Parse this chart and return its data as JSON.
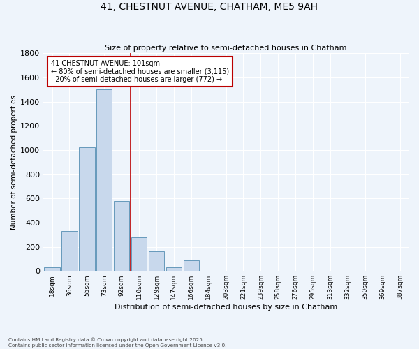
{
  "title_line1": "41, CHESTNUT AVENUE, CHATHAM, ME5 9AH",
  "title_line2": "Size of property relative to semi-detached houses in Chatham",
  "xlabel": "Distribution of semi-detached houses by size in Chatham",
  "ylabel": "Number of semi-detached properties",
  "categories": [
    "18sqm",
    "36sqm",
    "55sqm",
    "73sqm",
    "92sqm",
    "110sqm",
    "129sqm",
    "147sqm",
    "166sqm",
    "184sqm",
    "203sqm",
    "221sqm",
    "239sqm",
    "258sqm",
    "276sqm",
    "295sqm",
    "313sqm",
    "332sqm",
    "350sqm",
    "369sqm",
    "387sqm"
  ],
  "values": [
    30,
    330,
    1020,
    1500,
    580,
    280,
    160,
    30,
    90,
    0,
    0,
    0,
    0,
    0,
    0,
    0,
    0,
    0,
    0,
    0,
    0
  ],
  "bar_color": "#c8d8ec",
  "bar_edge_color": "#6699bb",
  "vline_color": "#bb0000",
  "vline_x": 4.5,
  "pct_smaller": 80,
  "count_smaller": 3115,
  "pct_larger": 20,
  "count_larger": 772,
  "property_size_label": "101sqm",
  "property_name": "41 CHESTNUT AVENUE",
  "ylim": [
    0,
    1800
  ],
  "yticks": [
    0,
    200,
    400,
    600,
    800,
    1000,
    1200,
    1400,
    1600,
    1800
  ],
  "bg_color": "#eef4fb",
  "grid_color": "#ffffff",
  "footer_line1": "Contains HM Land Registry data © Crown copyright and database right 2025.",
  "footer_line2": "Contains public sector information licensed under the Open Government Licence v3.0."
}
